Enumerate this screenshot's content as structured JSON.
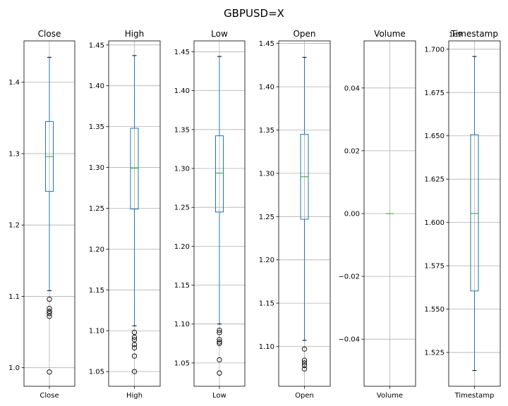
{
  "figure": {
    "suptitle": "GBPUSD=X"
  },
  "colors": {
    "box": "#1f77b4",
    "median": "#2ca02c",
    "grid": "#b0b0b0",
    "axes": "#000000",
    "flier": "#000000"
  },
  "chart_data": [
    {
      "type": "box",
      "title": "Close",
      "xticklabel": "Close",
      "grid": true,
      "ylim": [
        0.974,
        1.458
      ],
      "yticks": [
        1.0,
        1.1,
        1.2,
        1.3,
        1.4
      ],
      "ytick_labels": [
        "1.0",
        "1.1",
        "1.2",
        "1.3",
        "1.4"
      ],
      "exponent_label": "",
      "stats": {
        "whislo": 1.108,
        "q1": 1.247,
        "med": 1.296,
        "q3": 1.345,
        "whishi": 1.435
      },
      "fliers": [
        1.096,
        1.083,
        1.079,
        1.076,
        1.072,
        0.994
      ]
    },
    {
      "type": "box",
      "title": "High",
      "xticklabel": "High",
      "grid": true,
      "ylim": [
        1.032,
        1.455
      ],
      "yticks": [
        1.05,
        1.1,
        1.15,
        1.2,
        1.25,
        1.3,
        1.35,
        1.4,
        1.45
      ],
      "ytick_labels": [
        "1.05",
        "1.10",
        "1.15",
        "1.20",
        "1.25",
        "1.30",
        "1.35",
        "1.40",
        "1.45"
      ],
      "exponent_label": "",
      "stats": {
        "whislo": 1.106,
        "q1": 1.249,
        "med": 1.299,
        "q3": 1.348,
        "whishi": 1.437
      },
      "fliers": [
        1.098,
        1.092,
        1.089,
        1.083,
        1.079,
        1.069,
        1.05
      ]
    },
    {
      "type": "box",
      "title": "Low",
      "xticklabel": "Low",
      "grid": true,
      "ylim": [
        1.02,
        1.464
      ],
      "yticks": [
        1.05,
        1.1,
        1.15,
        1.2,
        1.25,
        1.3,
        1.35,
        1.4,
        1.45
      ],
      "ytick_labels": [
        "1.05",
        "1.10",
        "1.15",
        "1.20",
        "1.25",
        "1.30",
        "1.35",
        "1.40",
        "1.45"
      ],
      "exponent_label": "",
      "stats": {
        "whislo": 1.1,
        "q1": 1.244,
        "med": 1.294,
        "q3": 1.342,
        "whishi": 1.444
      },
      "fliers": [
        1.092,
        1.089,
        1.08,
        1.077,
        1.075,
        1.054,
        1.037
      ]
    },
    {
      "type": "box",
      "title": "Open",
      "xticklabel": "Open",
      "grid": true,
      "ylim": [
        1.054,
        1.453
      ],
      "yticks": [
        1.1,
        1.15,
        1.2,
        1.25,
        1.3,
        1.35,
        1.4,
        1.45
      ],
      "ytick_labels": [
        "1.10",
        "1.15",
        "1.20",
        "1.25",
        "1.30",
        "1.35",
        "1.40",
        "1.45"
      ],
      "exponent_label": "",
      "stats": {
        "whislo": 1.107,
        "q1": 1.247,
        "med": 1.296,
        "q3": 1.345,
        "whishi": 1.434
      },
      "fliers": [
        1.097,
        1.084,
        1.081,
        1.078,
        1.074
      ]
    },
    {
      "type": "box",
      "title": "Volume",
      "xticklabel": "Volume",
      "grid": true,
      "ylim": [
        -0.055,
        0.055
      ],
      "yticks": [
        -0.04,
        -0.02,
        0.0,
        0.02,
        0.04
      ],
      "ytick_labels": [
        "−0.04",
        "−0.02",
        "0.00",
        "0.02",
        "0.04"
      ],
      "exponent_label": "",
      "stats": {
        "whislo": 0,
        "q1": 0,
        "med": 0,
        "q3": 0,
        "whishi": 0
      },
      "fliers": []
    },
    {
      "type": "box",
      "title": "Timestamp",
      "xticklabel": "Timestamp",
      "grid": true,
      "ylim": [
        1.5055,
        1.7048
      ],
      "yticks": [
        1.525,
        1.55,
        1.575,
        1.6,
        1.625,
        1.65,
        1.675,
        1.7
      ],
      "ytick_labels": [
        "1.525",
        "1.550",
        "1.575",
        "1.600",
        "1.625",
        "1.650",
        "1.675",
        "1.700"
      ],
      "exponent_label": "1e9",
      "stats": {
        "whislo": 1.5146,
        "q1": 1.5605,
        "med": 1.6052,
        "q3": 1.6507,
        "whishi": 1.6958
      },
      "fliers": []
    }
  ]
}
